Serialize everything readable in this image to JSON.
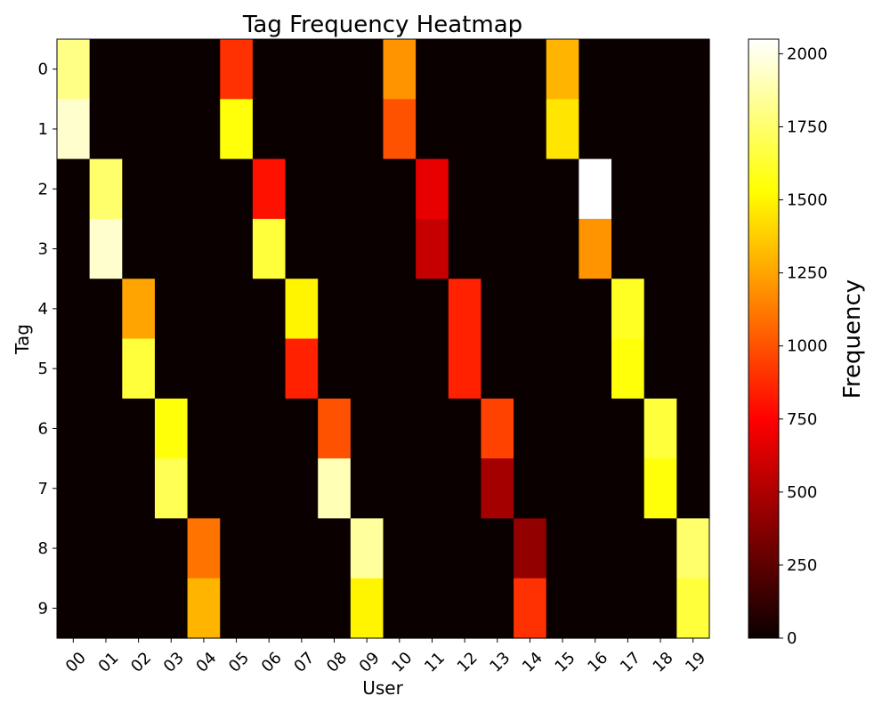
{
  "chart_data": {
    "type": "heatmap",
    "title": "Tag Frequency Heatmap",
    "xlabel": "User",
    "ylabel": "Tag",
    "colorbar_label": "Frequency",
    "colormap": "hot",
    "x_categories": [
      "00",
      "01",
      "02",
      "03",
      "04",
      "05",
      "06",
      "07",
      "08",
      "09",
      "10",
      "11",
      "12",
      "13",
      "14",
      "15",
      "16",
      "17",
      "18",
      "19"
    ],
    "y_categories": [
      "0",
      "1",
      "2",
      "3",
      "4",
      "5",
      "6",
      "7",
      "8",
      "9"
    ],
    "vmin": 0,
    "vmax": 2050,
    "colorbar_ticks": [
      0,
      250,
      500,
      750,
      1000,
      1250,
      1500,
      1750,
      2000
    ],
    "grid": false,
    "values": [
      [
        1800,
        0,
        0,
        0,
        0,
        900,
        0,
        0,
        0,
        0,
        1200,
        0,
        0,
        0,
        0,
        1300,
        0,
        0,
        0,
        0
      ],
      [
        1950,
        0,
        0,
        0,
        0,
        1550,
        0,
        0,
        0,
        0,
        1000,
        0,
        0,
        0,
        0,
        1450,
        0,
        0,
        0,
        0
      ],
      [
        0,
        1750,
        0,
        0,
        0,
        0,
        800,
        0,
        0,
        0,
        0,
        650,
        0,
        0,
        0,
        0,
        2050,
        0,
        0,
        0
      ],
      [
        0,
        1950,
        0,
        0,
        0,
        0,
        1650,
        0,
        0,
        0,
        0,
        550,
        0,
        0,
        0,
        0,
        1200,
        0,
        0,
        0
      ],
      [
        0,
        0,
        1250,
        0,
        0,
        0,
        0,
        1500,
        0,
        0,
        0,
        0,
        850,
        0,
        0,
        0,
        0,
        1600,
        0,
        0
      ],
      [
        0,
        0,
        1650,
        0,
        0,
        0,
        0,
        850,
        0,
        0,
        0,
        0,
        850,
        0,
        0,
        0,
        0,
        1550,
        0,
        0
      ],
      [
        0,
        0,
        0,
        1550,
        0,
        0,
        0,
        0,
        1000,
        0,
        0,
        0,
        0,
        950,
        0,
        0,
        0,
        0,
        1650,
        0
      ],
      [
        0,
        0,
        0,
        1700,
        0,
        0,
        0,
        0,
        1900,
        0,
        0,
        0,
        0,
        450,
        0,
        0,
        0,
        0,
        1550,
        0
      ],
      [
        0,
        0,
        0,
        0,
        1100,
        0,
        0,
        0,
        0,
        1850,
        0,
        0,
        0,
        0,
        400,
        0,
        0,
        0,
        0,
        1750
      ],
      [
        0,
        0,
        0,
        0,
        1300,
        0,
        0,
        0,
        0,
        1500,
        0,
        0,
        0,
        0,
        900,
        0,
        0,
        0,
        0,
        1650
      ]
    ]
  }
}
